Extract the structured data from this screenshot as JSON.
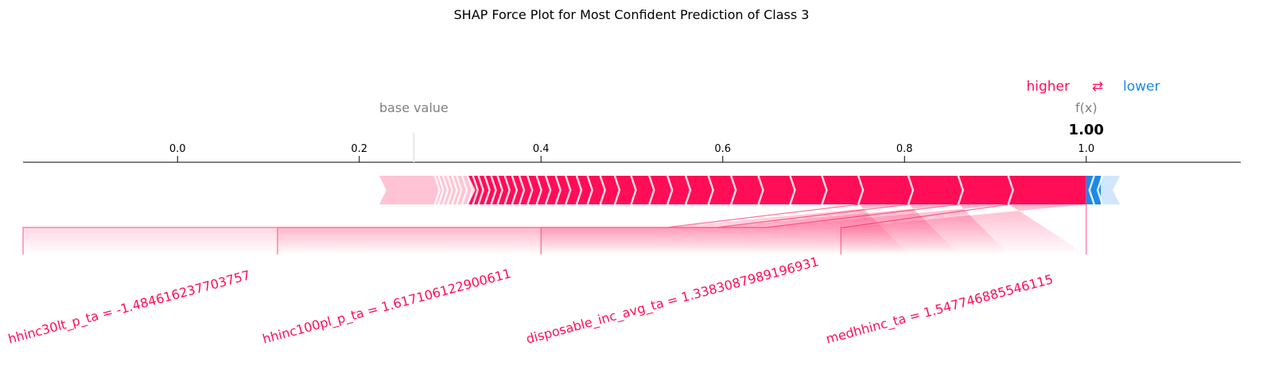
{
  "chart_data": {
    "type": "force",
    "title": "SHAP Force Plot for Most Confident Prediction of Class 3",
    "legend": {
      "higher": "higher",
      "arrows": "⇄",
      "lower": "lower"
    },
    "base_value_label": "base value",
    "base_value": 0.26,
    "fx_label": "f(x)",
    "fx_value_text": "1.00",
    "fx_value": 1.0,
    "xlim": [
      -0.17,
      1.17
    ],
    "ticks": [
      {
        "value": 0.0,
        "label": "0.0"
      },
      {
        "value": 0.2,
        "label": "0.2"
      },
      {
        "value": 0.4,
        "label": "0.4"
      },
      {
        "value": 0.6,
        "label": "0.6"
      },
      {
        "value": 0.8,
        "label": "0.8"
      },
      {
        "value": 1.0,
        "label": "1.0"
      }
    ],
    "positive_start": 0.222,
    "negative_end": 1.037,
    "positive_boundaries": [
      0.915,
      0.86,
      0.805,
      0.75,
      0.71,
      0.675,
      0.64,
      0.61,
      0.585,
      0.56,
      0.54,
      0.52,
      0.5,
      0.482,
      0.466,
      0.452,
      0.44,
      0.428,
      0.417,
      0.406,
      0.396,
      0.386,
      0.377,
      0.369,
      0.361,
      0.353,
      0.346,
      0.339,
      0.332,
      0.326,
      0.32,
      0.314,
      0.308,
      0.303,
      0.298,
      0.293,
      0.288,
      0.284
    ],
    "negative_boundaries": [
      1.007,
      1.016
    ],
    "labeled_features": [
      {
        "text": "medhhinc_ta = 1.547746885546115",
        "start": 0.915,
        "end": 1.0,
        "anchor": 0.73
      },
      {
        "text": "disposable_inc_avg_ta = 1.3383087989196931",
        "start": 0.86,
        "end": 0.915,
        "anchor": 0.4
      },
      {
        "text": "hhinc100pl_p_ta = 1.617106122900611",
        "start": 0.805,
        "end": 0.86,
        "anchor": 0.11
      },
      {
        "text": "hhinc30lt_p_ta = -1.484616237703757",
        "start": 0.75,
        "end": 0.805,
        "anchor": -0.17
      }
    ],
    "colors": {
      "positive": "#ff0d57",
      "negative": "#1e88e5",
      "positive_light": "#ffc3d5",
      "negative_light": "#d1e6fa"
    }
  }
}
